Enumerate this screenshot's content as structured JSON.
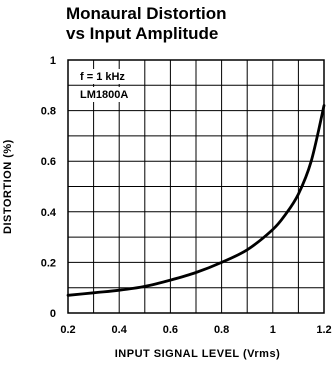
{
  "chart_data": {
    "type": "line",
    "title_line1": "Monaural Distortion",
    "title_line2": "vs Input Amplitude",
    "xlabel": "INPUT SIGNAL LEVEL (Vrms)",
    "ylabel": "DISTORTION (%)",
    "xlim": [
      0.2,
      1.2
    ],
    "ylim": [
      0,
      1
    ],
    "x_ticks": [
      "0.2",
      "0.4",
      "0.6",
      "0.8",
      "1",
      "1.2"
    ],
    "y_ticks": [
      "0",
      "0.2",
      "0.4",
      "0.6",
      "0.8",
      "1"
    ],
    "grid": true,
    "annotations": [
      "f = 1 kHz",
      "LM1800A"
    ],
    "series": [
      {
        "x": [
          0.2,
          0.3,
          0.4,
          0.5,
          0.6,
          0.7,
          0.8,
          0.9,
          1.0,
          1.05,
          1.1,
          1.15,
          1.2
        ],
        "y": [
          0.07,
          0.08,
          0.09,
          0.105,
          0.13,
          0.16,
          0.2,
          0.25,
          0.33,
          0.39,
          0.47,
          0.6,
          0.82
        ]
      }
    ]
  }
}
